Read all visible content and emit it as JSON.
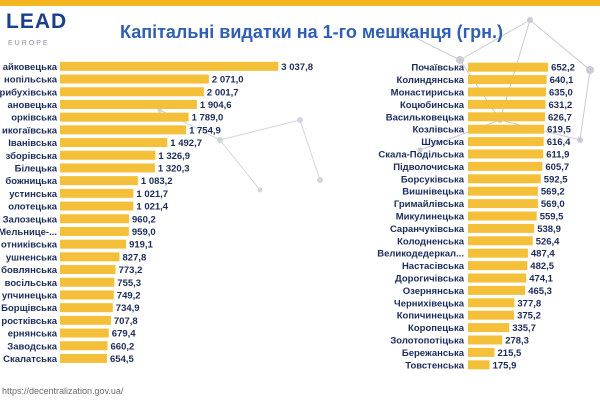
{
  "header": {
    "logo_text": "LEAD",
    "logo_sub": "EUROPE",
    "title": "Капітальні видатки на 1-го мешканця (грн.)"
  },
  "footer": {
    "source": "https://decentralization.gov.ua/"
  },
  "colors": {
    "bar": "#f5c039",
    "title": "#2f5fb3",
    "label": "#1c2b5a",
    "accent": "#f3b61f"
  },
  "chart_data": [
    {
      "type": "bar",
      "orientation": "horizontal",
      "categories": [
        "айковецька",
        "нопільська",
        "рибухівська",
        "ановецька",
        "орківська",
        "икогаївська",
        "Іванівська",
        "зборівська",
        "Білецька",
        "божницька",
        "устинська",
        "олотецька",
        "Залозецька",
        "Мельнице-...",
        "отниківська",
        "ушненська",
        "бовлянська",
        "восільська",
        "упчинецька",
        "Борщівська",
        "ростківська",
        "ернянська",
        "Заводська",
        "Скалатська"
      ],
      "values": [
        3037.8,
        2071.0,
        2001.7,
        1904.6,
        1789.0,
        1754.9,
        1492.7,
        1326.9,
        1320.3,
        1083.2,
        1021.7,
        1021.4,
        960.2,
        959.0,
        919.1,
        827.8,
        773.2,
        755.3,
        749.2,
        734.9,
        707.8,
        679.4,
        660.2,
        654.5
      ],
      "value_labels": [
        "3 037,8",
        "2 071,0",
        "2 001,7",
        "1 904,6",
        "1 789,0",
        "1 754,9",
        "1 492,7",
        "1 326,9",
        "1 320,3",
        "1 083,2",
        "1 021,7",
        "1 021,4",
        "960,2",
        "959,0",
        "919,1",
        "827,8",
        "773,2",
        "755,3",
        "749,2",
        "734,9",
        "707,8",
        "679,4",
        "660,2",
        "654,5"
      ],
      "xlim": [
        0,
        3200
      ]
    },
    {
      "type": "bar",
      "orientation": "horizontal",
      "categories": [
        "Почаївська",
        "Колиндянська",
        "Монастириська",
        "Коцюбинська",
        "Васильковецька",
        "Козлівська",
        "Шумська",
        "Скала-Подільська",
        "Підволочиська",
        "Борсуківська",
        "Вишнівецька",
        "Гримайлівська",
        "Микулинецька",
        "Саранчуківська",
        "Колодненська",
        "Великодедеркал...",
        "Настасівська",
        "Дорогичівська",
        "Озернянська",
        "Чернихівецька",
        "Копичинецька",
        "Коропецька",
        "Золотопотіцька",
        "Бережанська",
        "Товстенська"
      ],
      "values": [
        652.2,
        640.1,
        635.0,
        631.2,
        626.7,
        619.5,
        616.4,
        611.9,
        605.7,
        592.5,
        569.2,
        569.0,
        559.5,
        538.9,
        526.4,
        487.4,
        482.5,
        474.1,
        465.3,
        377.8,
        375.2,
        335.7,
        278.3,
        215.5,
        175.9
      ],
      "value_labels": [
        "652,2",
        "640,1",
        "635,0",
        "631,2",
        "626,7",
        "619,5",
        "616,4",
        "611,9",
        "605,7",
        "592,5",
        "569,2",
        "569,0",
        "559,5",
        "538,9",
        "526,4",
        "487,4",
        "482,5",
        "474,1",
        "465,3",
        "377,8",
        "375,2",
        "335,7",
        "278,3",
        "215,5",
        "175,9"
      ],
      "xlim": [
        0,
        700
      ]
    }
  ]
}
